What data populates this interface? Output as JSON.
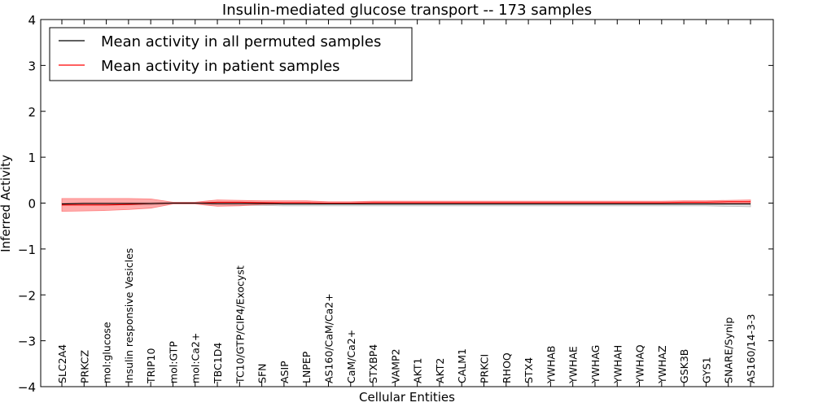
{
  "chart_data": {
    "type": "line",
    "title": "Insulin-mediated glucose transport -- 173 samples",
    "xlabel": "Cellular Entities",
    "ylabel": "Inferred Activity",
    "ylim": [
      -4,
      4
    ],
    "yticks": [
      4,
      3,
      2,
      1,
      0,
      -1,
      -2,
      -3,
      -4
    ],
    "ytick_labels": [
      "4",
      "3",
      "2",
      "1",
      "0",
      "−1",
      "−2",
      "−3",
      "−4"
    ],
    "legend_position": "upper-left",
    "categories": [
      "SLC2A4",
      "PRKCZ",
      "mol:glucose",
      "Insulin responsive Vesicles",
      "TRIP10",
      "mol:GTP",
      "mol:Ca2+",
      "TBC1D4",
      "TC10/GTP/CIP4/Exocyst",
      "SFN",
      "ASIP",
      "LNPEP",
      "AS160/CaM/Ca2+",
      "CaM/Ca2+",
      "STXBP4",
      "VAMP2",
      "AKT1",
      "AKT2",
      "CALM1",
      "PRKCI",
      "RHOQ",
      "STX4",
      "YWHAB",
      "YWHAE",
      "YWHAG",
      "YWHAH",
      "YWHAQ",
      "YWHAZ",
      "GSK3B",
      "GYS1",
      "SNARE/Synip",
      "AS160/14-3-3"
    ],
    "series": [
      {
        "name": "Mean activity in all permuted samples",
        "color": "#000000",
        "values": [
          -0.02,
          -0.01,
          -0.01,
          -0.01,
          -0.01,
          0.0,
          0.0,
          -0.01,
          -0.01,
          -0.01,
          -0.02,
          -0.02,
          -0.02,
          -0.02,
          -0.02,
          -0.02,
          -0.02,
          -0.02,
          -0.02,
          -0.02,
          -0.02,
          -0.02,
          -0.02,
          -0.02,
          -0.02,
          -0.02,
          -0.02,
          -0.02,
          -0.02,
          -0.02,
          -0.02,
          -0.02
        ],
        "band_upper": [
          0.0,
          0.01,
          0.01,
          0.01,
          0.01,
          0.01,
          0.01,
          0.0,
          0.0,
          0.0,
          0.0,
          0.0,
          0.0,
          0.0,
          0.0,
          0.0,
          0.0,
          0.0,
          0.0,
          0.0,
          0.0,
          0.0,
          0.0,
          0.0,
          0.0,
          0.0,
          0.0,
          0.0,
          0.0,
          0.0,
          0.0,
          0.0
        ],
        "band_lower": [
          -0.05,
          -0.04,
          -0.04,
          -0.04,
          -0.04,
          -0.02,
          -0.02,
          -0.04,
          -0.05,
          -0.05,
          -0.06,
          -0.06,
          -0.06,
          -0.06,
          -0.06,
          -0.06,
          -0.06,
          -0.06,
          -0.06,
          -0.06,
          -0.06,
          -0.06,
          -0.06,
          -0.06,
          -0.06,
          -0.06,
          -0.06,
          -0.06,
          -0.06,
          -0.06,
          -0.07,
          -0.08
        ],
        "band_color": "#aaaaaa"
      },
      {
        "name": "Mean activity in patient samples",
        "color": "#ff0000",
        "values": [
          -0.04,
          -0.04,
          -0.04,
          -0.03,
          -0.01,
          0.0,
          0.0,
          0.02,
          0.02,
          0.01,
          0.01,
          0.01,
          0.0,
          0.0,
          0.01,
          0.01,
          0.01,
          0.01,
          0.01,
          0.01,
          0.01,
          0.01,
          0.01,
          0.01,
          0.01,
          0.01,
          0.01,
          0.01,
          0.02,
          0.02,
          0.03,
          0.03
        ],
        "band_upper": [
          0.1,
          0.1,
          0.1,
          0.1,
          0.09,
          0.02,
          0.02,
          0.07,
          0.06,
          0.05,
          0.05,
          0.05,
          0.03,
          0.03,
          0.04,
          0.04,
          0.04,
          0.04,
          0.04,
          0.04,
          0.04,
          0.04,
          0.04,
          0.04,
          0.04,
          0.04,
          0.04,
          0.04,
          0.05,
          0.05,
          0.06,
          0.07
        ],
        "band_lower": [
          -0.18,
          -0.17,
          -0.16,
          -0.14,
          -0.11,
          -0.02,
          -0.02,
          -0.07,
          -0.06,
          -0.03,
          -0.02,
          -0.02,
          -0.02,
          -0.02,
          -0.02,
          -0.02,
          -0.02,
          -0.02,
          -0.02,
          -0.02,
          -0.02,
          -0.02,
          -0.02,
          -0.02,
          -0.02,
          -0.02,
          -0.02,
          -0.02,
          -0.01,
          -0.01,
          0.0,
          0.0
        ],
        "band_color": "#ff6666"
      }
    ]
  }
}
